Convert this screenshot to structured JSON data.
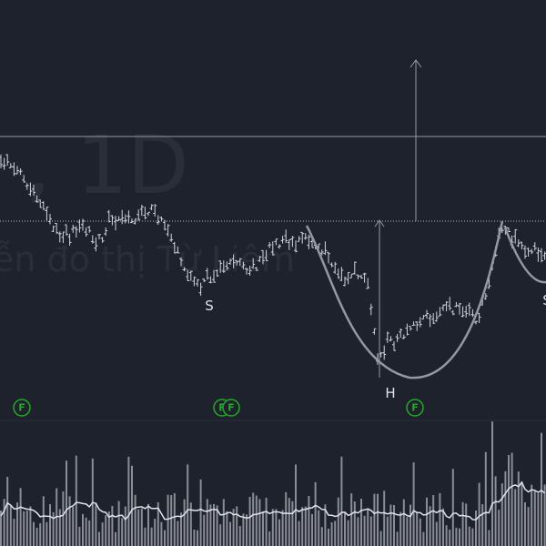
{
  "watermark": {
    "symbol": ", 1D",
    "description": "ễn đo thị Từ Liêm"
  },
  "pattern_labels": [
    "S",
    "H",
    "S"
  ],
  "event_markers": [
    "F",
    "F",
    "F",
    "F"
  ]
}
